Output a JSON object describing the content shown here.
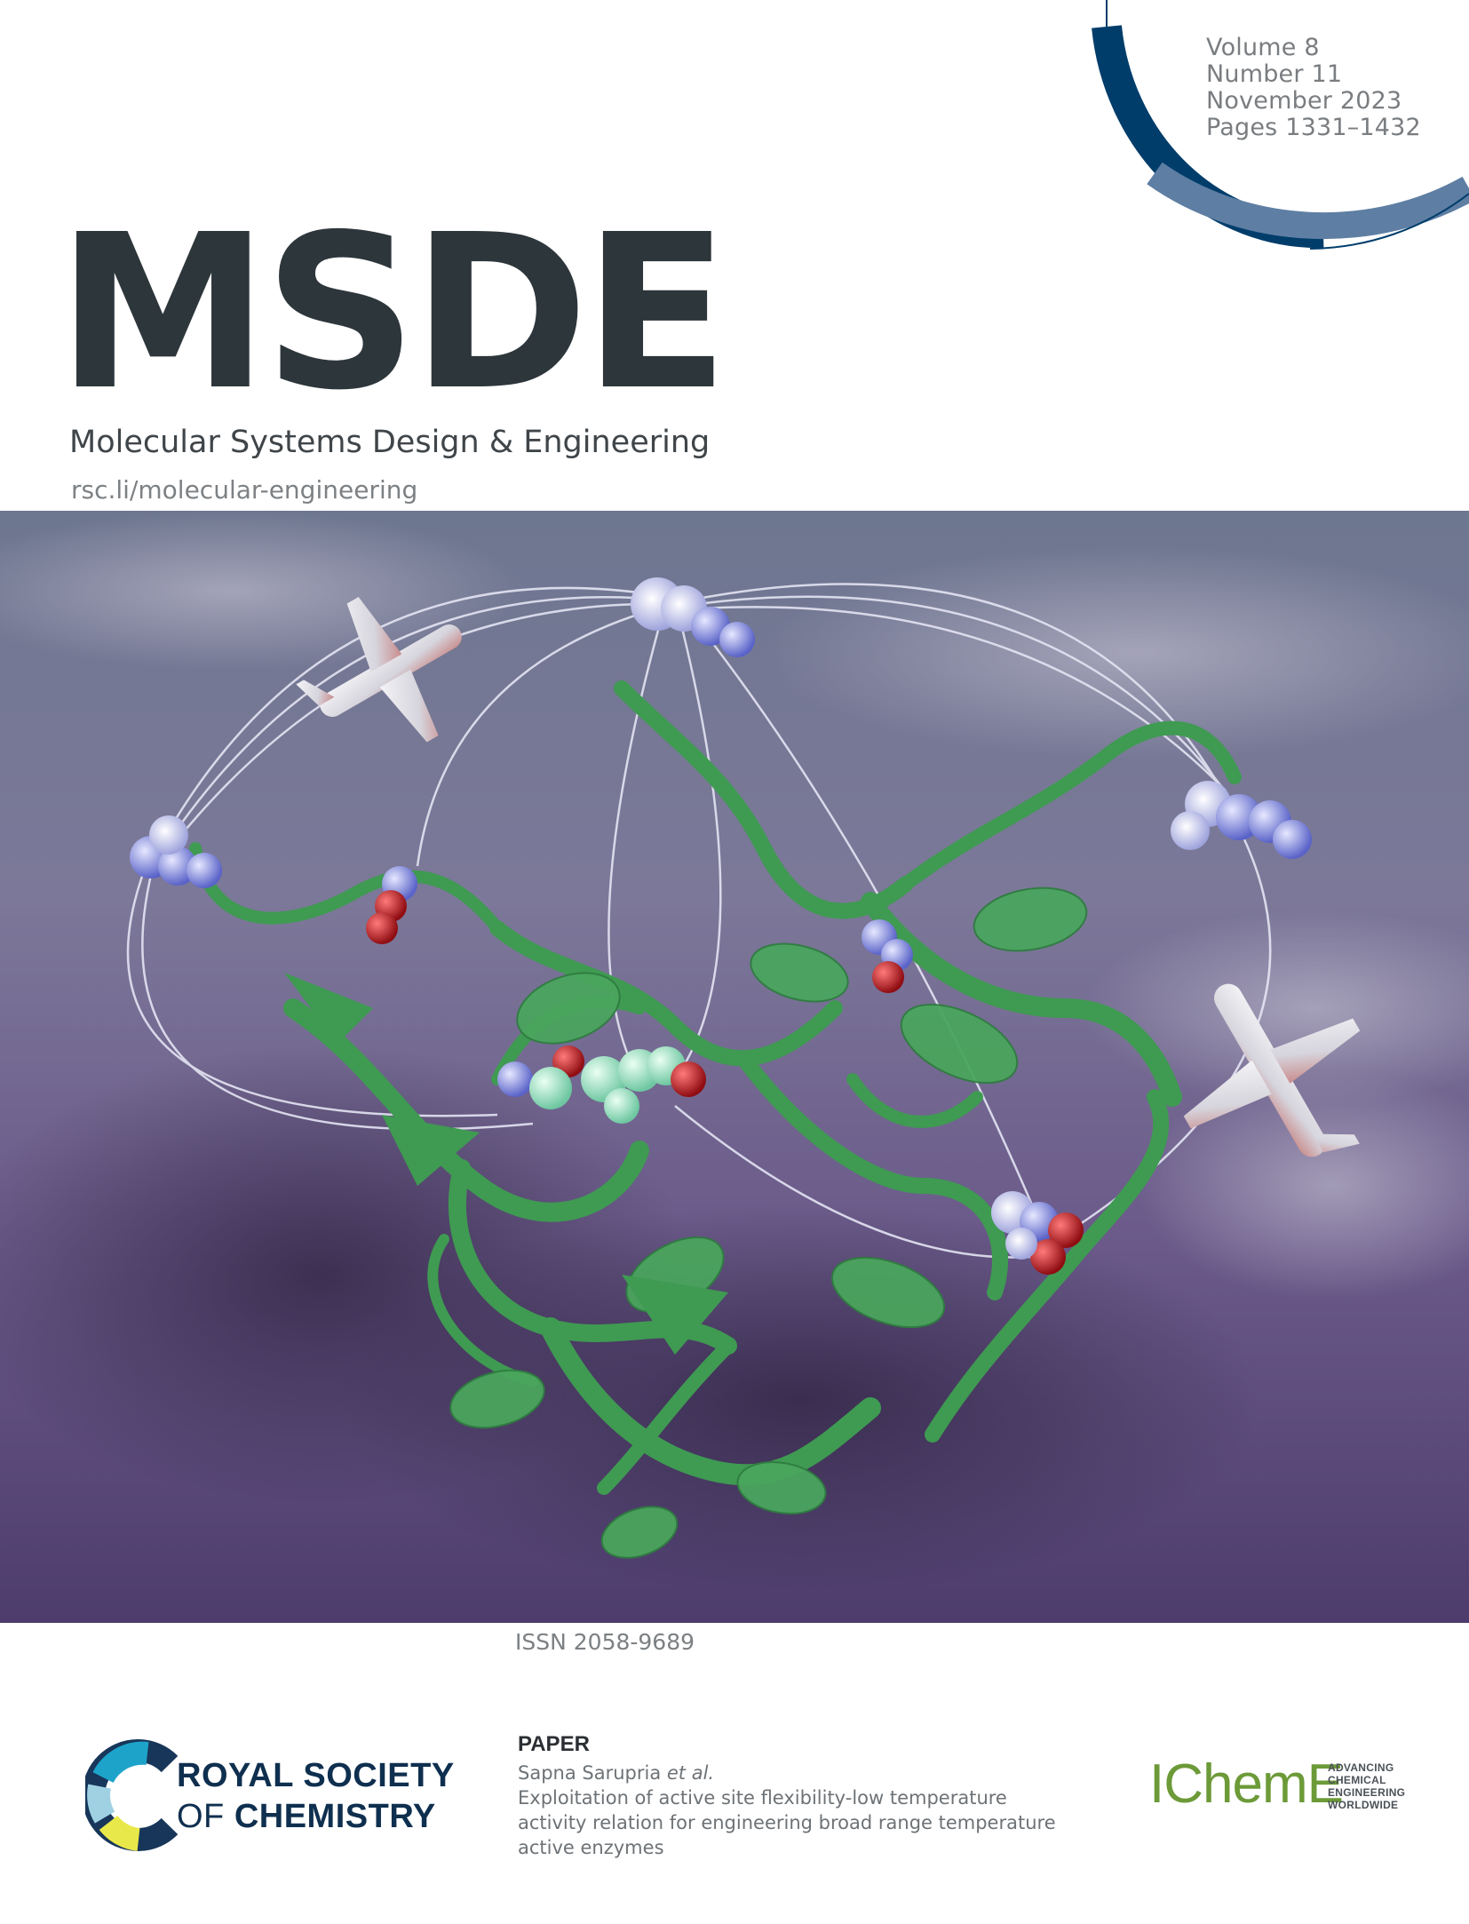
{
  "issue": {
    "volume": "Volume 8",
    "number": "Number 11",
    "date": "November 2023",
    "pages": "Pages 1331–1432"
  },
  "journal": {
    "abbrev": "MSDE",
    "full_title": "Molecular Systems Design & Engineering",
    "url": "rsc.li/molecular-engineering"
  },
  "issn": "ISSN 2058-9689",
  "publisher": {
    "line1": "ROYAL SOCIETY",
    "line2_prefix": "OF ",
    "line2_bold": "CHEMISTRY"
  },
  "paper": {
    "label": "PAPER",
    "authors": "Sapna Sarupria ",
    "etal": "et al.",
    "title_lines": [
      "Exploitation of active site flexibility-low temperature",
      "activity relation for engineering broad range temperature",
      "active enzymes"
    ]
  },
  "partner": {
    "name": "IChemE",
    "tagline": [
      "ADVANCING",
      "CHEMICAL",
      "ENGINEERING",
      "WORLDWIDE"
    ]
  },
  "colors": {
    "ring_dark": "#003d6b",
    "ring_light": "#5e7ea3",
    "masthead": "#2d363b",
    "protein": "#3f9a52",
    "sky": "#6a5a8c",
    "icheme_green": "#6c9a38"
  }
}
